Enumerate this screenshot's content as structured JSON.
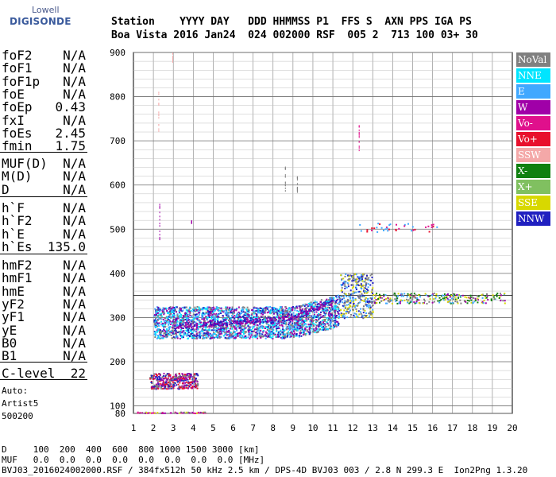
{
  "logo": {
    "top": "Lowell",
    "main": "DIGISONDE"
  },
  "header": {
    "line1": "Station    YYYY DAY   DDD HHMMSS P1  FFS S  AXN PPS IGA PS",
    "line2": "Boa Vista 2016 Jan24  024 002000 RSF  005 2  713 100 03+ 30"
  },
  "params_group1": [
    {
      "name": "foF2",
      "value": "N/A"
    },
    {
      "name": "foF1",
      "value": "N/A"
    },
    {
      "name": "foF1p",
      "value": "N/A"
    },
    {
      "name": "foE",
      "value": "N/A"
    },
    {
      "name": "foEp",
      "value": "0.43"
    },
    {
      "name": "fxI",
      "value": "N/A"
    },
    {
      "name": "foEs",
      "value": "2.45"
    },
    {
      "name": "fmin",
      "value": "1.75"
    }
  ],
  "params_group2": [
    {
      "name": "MUF(D)",
      "value": "N/A"
    },
    {
      "name": "M(D)",
      "value": "N/A"
    },
    {
      "name": "D",
      "value": "N/A"
    }
  ],
  "params_group3": [
    {
      "name": "h`F",
      "value": "N/A"
    },
    {
      "name": "h`F2",
      "value": "N/A"
    },
    {
      "name": "h`E",
      "value": "N/A"
    },
    {
      "name": "h`Es",
      "value": "135.0"
    }
  ],
  "params_group4": [
    {
      "name": "hmF2",
      "value": "N/A"
    },
    {
      "name": "hmF1",
      "value": "N/A"
    },
    {
      "name": "hmE",
      "value": "N/A"
    },
    {
      "name": "yF2",
      "value": "N/A"
    },
    {
      "name": "yF1",
      "value": "N/A"
    },
    {
      "name": "yE",
      "value": "N/A"
    },
    {
      "name": "B0",
      "value": "N/A"
    },
    {
      "name": "B1",
      "value": "N/A"
    }
  ],
  "clevel": {
    "name": "C-level",
    "value": "22"
  },
  "auto": {
    "line1": "Auto:",
    "line2": "Artist5",
    "line3": "500200"
  },
  "legend": [
    {
      "label": "NoVal",
      "color": "#808080"
    },
    {
      "label": "NNE",
      "color": "#00e5ff"
    },
    {
      "label": "E",
      "color": "#40a8ff"
    },
    {
      "label": "W",
      "color": "#a000a8"
    },
    {
      "label": "Vo-",
      "color": "#e0108c"
    },
    {
      "label": "Vo+",
      "color": "#e8102c"
    },
    {
      "label": "SSW",
      "color": "#f4a8a8"
    },
    {
      "label": "X-",
      "color": "#108010"
    },
    {
      "label": "X+",
      "color": "#80c060"
    },
    {
      "label": "SSE",
      "color": "#d8d800"
    },
    {
      "label": "NNW",
      "color": "#2020c0"
    }
  ],
  "footer": {
    "line1": "D     100  200  400  600  800 1000 1500 3000 [km]",
    "line2": "MUF   0.0  0.0  0.0  0.0  0.0  0.0  0.0  0.0 [MHz]",
    "line3": "BVJ03_2016024002000.RSF / 384fx512h 50 kHz 2.5 km / DPS-4D BVJ03 003 / 2.8 N 299.3 E  Ion2Png 1.3.20"
  },
  "chart_data": {
    "type": "scatter",
    "xlim": [
      1,
      20
    ],
    "ylim": [
      80,
      900
    ],
    "x_ticks": [
      1,
      2,
      3,
      4,
      5,
      6,
      7,
      8,
      9,
      10,
      11,
      12,
      13,
      14,
      15,
      16,
      17,
      18,
      19,
      20
    ],
    "y_ticks": [
      80,
      100,
      200,
      300,
      400,
      500,
      600,
      700,
      800,
      900
    ],
    "grid": true,
    "reference_line_y": 350,
    "clusters": [
      {
        "name": "main-trace",
        "x": [
          2.0,
          11.3
        ],
        "y": [
          260,
          420
        ],
        "colors": [
          "#00e5ff",
          "#40a8ff",
          "#a000a8",
          "#2020c0",
          "#808080"
        ]
      },
      {
        "name": "Es-trace",
        "x": [
          1.8,
          4.2
        ],
        "y": [
          140,
          175
        ],
        "colors": [
          "#2020c0",
          "#e8102c",
          "#a000a8",
          "#808080"
        ]
      },
      {
        "name": "F-high-11-13",
        "x": [
          11.3,
          13.0
        ],
        "y": [
          300,
          400
        ],
        "colors": [
          "#d8d800",
          "#40a8ff",
          "#808080",
          "#2020c0"
        ]
      },
      {
        "name": "F-tail",
        "x": [
          13.0,
          19.6
        ],
        "y": [
          330,
          370
        ],
        "colors": [
          "#808080",
          "#40a8ff",
          "#d8d800",
          "#a000a8",
          "#108010"
        ]
      },
      {
        "name": "multi-500",
        "x": [
          12.2,
          16.2
        ],
        "y": [
          495,
          515
        ],
        "colors": [
          "#e0108c",
          "#e8102c",
          "#40a8ff"
        ]
      }
    ]
  }
}
